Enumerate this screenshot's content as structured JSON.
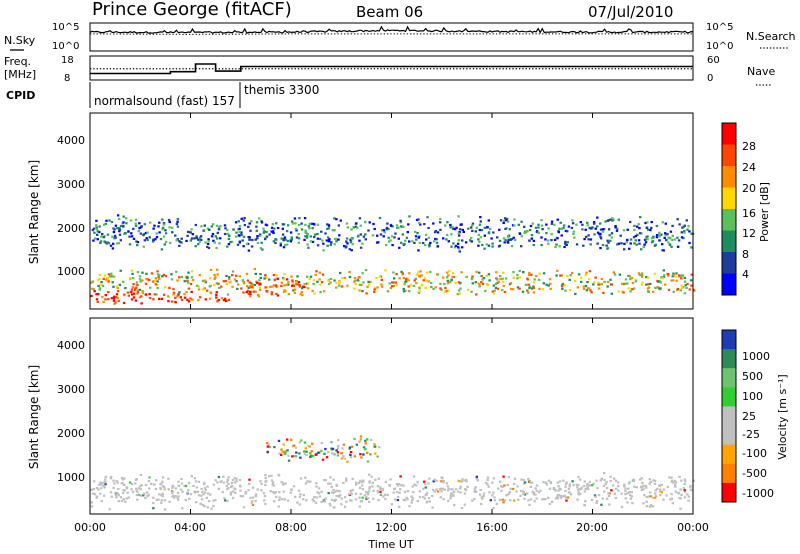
{
  "header": {
    "station": "Prince George (fitACF)",
    "beam": "Beam 06",
    "date": "07/Jul/2010"
  },
  "nsky_panel": {
    "left_label": "N.Sky",
    "left_ticks": [
      "10^5",
      "10^0"
    ],
    "right_ticks": [
      "10^5",
      "10^0"
    ],
    "right_label": "N.Search"
  },
  "freq_panel": {
    "left_label_line1": "Freq.",
    "left_label_line2": "[MHz]",
    "left_ticks": [
      "18",
      "8"
    ],
    "right_ticks": [
      "60",
      "0"
    ],
    "right_label": "Nave"
  },
  "cpid": {
    "label": "CPID",
    "programs": [
      "normalsound (fast) 157",
      "themis 3300"
    ]
  },
  "x_axis": {
    "label": "Time UT",
    "ticks": [
      "00:00",
      "04:00",
      "08:00",
      "12:00",
      "16:00",
      "20:00",
      "00:00"
    ]
  },
  "power_panel": {
    "ylabel": "Slant Range [km]",
    "yticks": [
      "1000",
      "2000",
      "3000",
      "4000"
    ],
    "colorbar_title": "Power [dB]",
    "colorbar_ticks": [
      "4",
      "8",
      "12",
      "16",
      "20",
      "24",
      "28"
    ],
    "colors": [
      "#0000ff",
      "#1e3c9c",
      "#1e8c5e",
      "#5cbf5c",
      "#ffd700",
      "#ff8c00",
      "#ff4500",
      "#ff0000"
    ]
  },
  "velocity_panel": {
    "ylabel": "Slant Range [km]",
    "yticks": [
      "1000",
      "2000",
      "3000",
      "4000"
    ],
    "colorbar_title": "Velocity [m s⁻¹]",
    "colorbar_ticks": [
      "1000",
      "500",
      "100",
      "25",
      "-25",
      "-100",
      "-500",
      "-1000"
    ],
    "colors": [
      "#1e3cb4",
      "#2e8b57",
      "#6fc36f",
      "#32cd32",
      "#c0c0c0",
      "#c0c0c0",
      "#ffa500",
      "#ff7f00",
      "#ff0000"
    ]
  },
  "chart_data": [
    {
      "type": "line",
      "title": "N.Sky / N.Search",
      "x": [
        "00:00",
        "04:00",
        "08:00",
        "12:00",
        "16:00",
        "20:00",
        "00:00"
      ],
      "ylim_log10": [
        0,
        5
      ],
      "series": [
        {
          "name": "N.Sky",
          "values_log10": [
            3.3,
            3.2,
            3.3,
            3.6,
            3.4,
            3.3,
            3.3
          ]
        },
        {
          "name": "N.Search",
          "values_log10": [
            3.1,
            3.0,
            3.1,
            3.1,
            3.1,
            3.1,
            3.1
          ]
        }
      ]
    },
    {
      "type": "line",
      "title": "Freq. / Nave",
      "x_hours": [
        0,
        3.2,
        3.2,
        4.2,
        4.2,
        5.0,
        5.0,
        6.0,
        6.0,
        24
      ],
      "ylim": [
        8,
        18
      ],
      "series": [
        {
          "name": "Freq. [MHz]",
          "values": [
            10.5,
            10.5,
            11.3,
            11.3,
            14.8,
            14.8,
            11.6,
            11.6,
            13.7,
            13.7
          ]
        }
      ],
      "nave_ylim": [
        0,
        60
      ],
      "nave_approx": 28
    },
    {
      "type": "heatmap",
      "title": "Power [dB]",
      "xlim_hours": [
        0,
        24
      ],
      "ylim_km": [
        180,
        4600
      ],
      "colorbar_range_db": [
        0,
        30
      ],
      "scatter_bands": [
        {
          "t_start": 0,
          "t_end": 24,
          "r_center": 800,
          "r_width": 500,
          "level": "medium-high"
        },
        {
          "t_start": 0,
          "t_end": 5.5,
          "r_center": 450,
          "r_width": 300,
          "level": "high"
        },
        {
          "t_start": 6,
          "t_end": 8.5,
          "r_center": 650,
          "r_width": 400,
          "level": "high"
        },
        {
          "t_start": 0,
          "t_end": 24,
          "r_center": 1900,
          "r_width": 700,
          "level": "low-medium"
        }
      ]
    },
    {
      "type": "heatmap",
      "title": "Velocity [m s-1]",
      "xlim_hours": [
        0,
        24
      ],
      "ylim_km": [
        180,
        4600
      ],
      "colorbar_range": [
        -1000,
        1000
      ],
      "scatter_bands": [
        {
          "t_start": 0,
          "t_end": 24,
          "r_center": 700,
          "r_width": 700,
          "level": "ground-scatter"
        },
        {
          "t_start": 7,
          "t_end": 11.5,
          "r_center": 1650,
          "r_width": 500,
          "level": "mixed-velocity"
        }
      ]
    }
  ]
}
